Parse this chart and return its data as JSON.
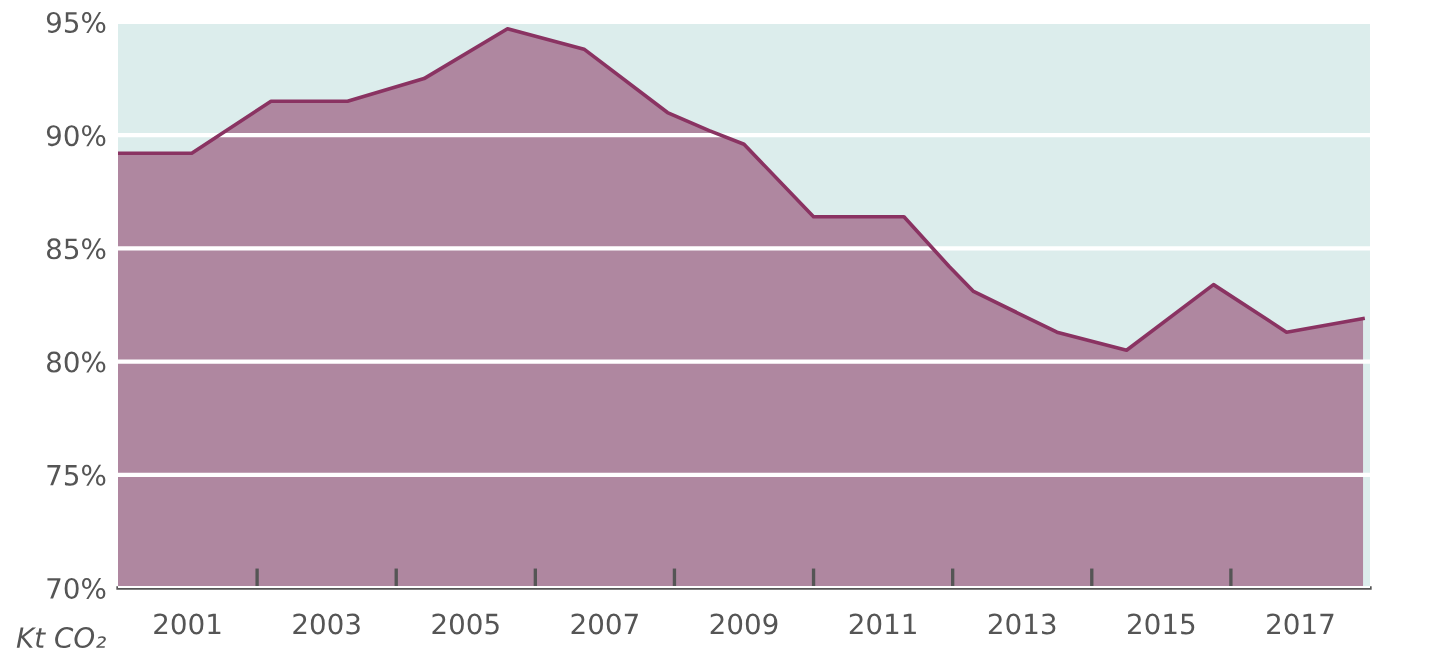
{
  "chart_data": {
    "type": "area",
    "ylabel": "Kt CO₂",
    "xlim": [
      2000,
      2018
    ],
    "ylim": [
      70,
      95
    ],
    "yticks": [
      {
        "value": 70,
        "label": "70%"
      },
      {
        "value": 75,
        "label": "75%"
      },
      {
        "value": 80,
        "label": "80%"
      },
      {
        "value": 85,
        "label": "85%"
      },
      {
        "value": 90,
        "label": "90%"
      },
      {
        "value": 95,
        "label": "95%"
      }
    ],
    "xticks": [
      {
        "value": 2001,
        "label": "2001"
      },
      {
        "value": 2002,
        "label": null
      },
      {
        "value": 2003,
        "label": "2003"
      },
      {
        "value": 2004,
        "label": null
      },
      {
        "value": 2005,
        "label": "2005"
      },
      {
        "value": 2006,
        "label": null
      },
      {
        "value": 2007,
        "label": "2007"
      },
      {
        "value": 2008,
        "label": null
      },
      {
        "value": 2009,
        "label": "2009"
      },
      {
        "value": 2010,
        "label": null
      },
      {
        "value": 2011,
        "label": "2011"
      },
      {
        "value": 2012,
        "label": null
      },
      {
        "value": 2013,
        "label": "2013"
      },
      {
        "value": 2014,
        "label": null
      },
      {
        "value": 2015,
        "label": "2015"
      },
      {
        "value": 2016,
        "label": null
      },
      {
        "value": 2017,
        "label": "2017"
      }
    ],
    "grid": "y",
    "line_style": "solid",
    "marker": "none",
    "series": [
      {
        "color": "#8a3362",
        "x": [
          2000,
          2001.06,
          2002.2,
          2003.3,
          2004.4,
          2005.6,
          2006.7,
          2007.9,
          2008.5,
          2009.0,
          2010.0,
          2011.3,
          2011.95,
          2012.3,
          2013.5,
          2014.5,
          2015.75,
          2016.8,
          2017.9
        ],
        "values": [
          89.2,
          89.2,
          91.5,
          91.5,
          92.5,
          94.7,
          93.8,
          91.0,
          90.2,
          89.6,
          86.4,
          86.4,
          84.2,
          83.1,
          81.3,
          80.5,
          83.4,
          81.3,
          81.9
        ]
      }
    ]
  }
}
